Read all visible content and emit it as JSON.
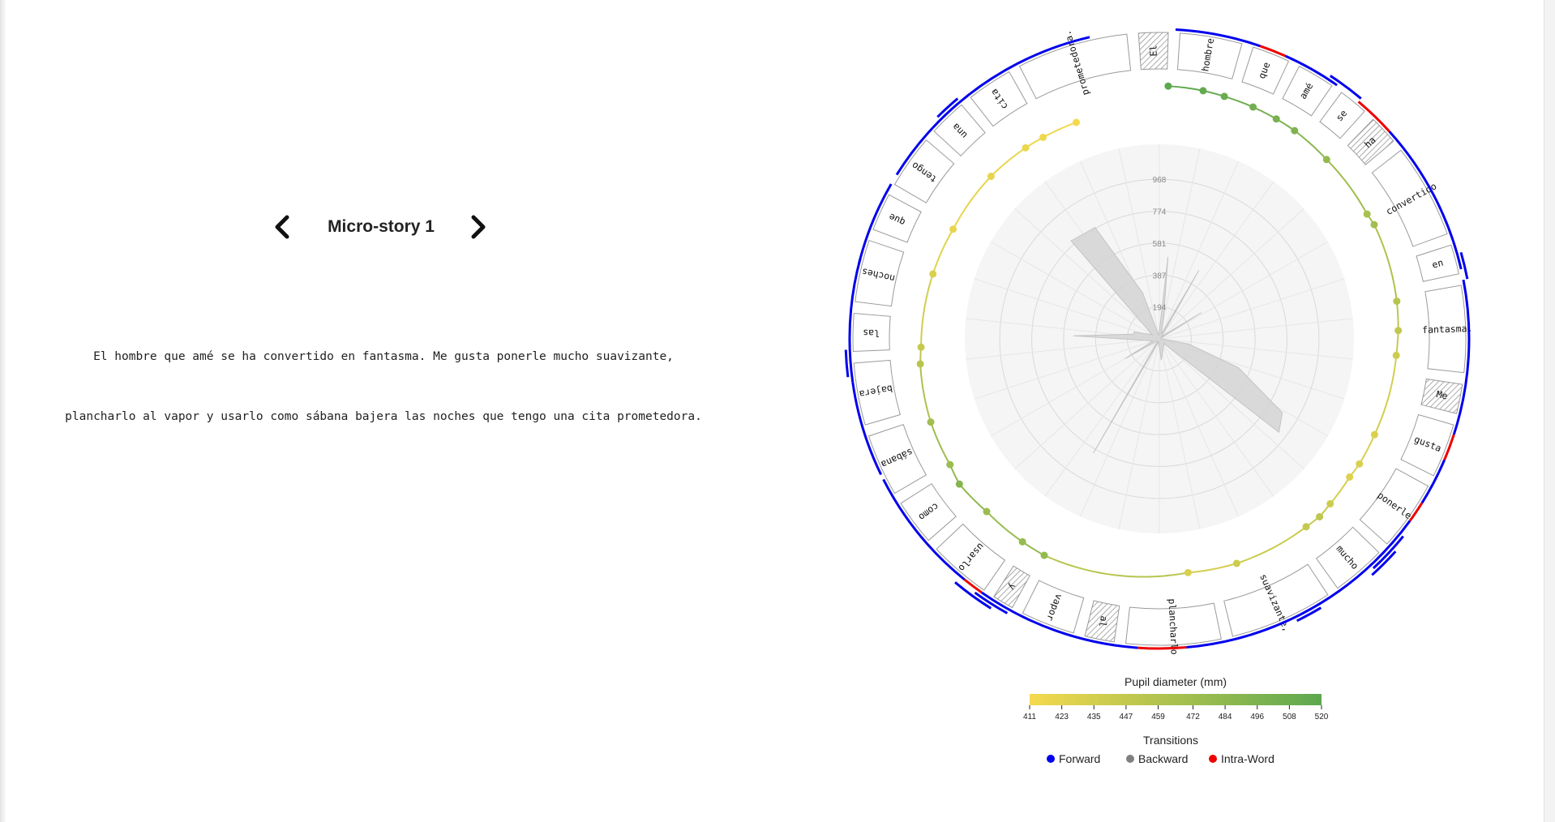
{
  "nav": {
    "prev_icon": "chevron-left-icon",
    "next_icon": "chevron-right-icon",
    "title": "Micro-story 1"
  },
  "story": {
    "lines": [
      "El hombre que amé se ha convertido en fantasma. Me gusta ponerle mucho suavizante,",
      "plancharlo al vapor y usarlo como sábana bajera las noches que tengo una cita prometedora."
    ]
  },
  "chart_data": {
    "type": "radial",
    "words": [
      {
        "text": "El",
        "hatched": true
      },
      {
        "text": "hombre",
        "hatched": false
      },
      {
        "text": "que",
        "hatched": false
      },
      {
        "text": "amé",
        "hatched": false
      },
      {
        "text": "se",
        "hatched": false
      },
      {
        "text": "ha",
        "hatched": true
      },
      {
        "text": "convertido",
        "hatched": false
      },
      {
        "text": "en",
        "hatched": false
      },
      {
        "text": "fantasma.",
        "hatched": false
      },
      {
        "text": "Me",
        "hatched": true
      },
      {
        "text": "gusta",
        "hatched": false
      },
      {
        "text": "ponerle",
        "hatched": false
      },
      {
        "text": "mucho",
        "hatched": false
      },
      {
        "text": "suavizante,",
        "hatched": false
      },
      {
        "text": "plancharlo",
        "hatched": false
      },
      {
        "text": "al",
        "hatched": true
      },
      {
        "text": "vapor",
        "hatched": false
      },
      {
        "text": "y",
        "hatched": true
      },
      {
        "text": "usarlo",
        "hatched": false
      },
      {
        "text": "como",
        "hatched": false
      },
      {
        "text": "sábana",
        "hatched": false
      },
      {
        "text": "bajera",
        "hatched": false
      },
      {
        "text": "las",
        "hatched": false
      },
      {
        "text": "noches",
        "hatched": false
      },
      {
        "text": "que",
        "hatched": false
      },
      {
        "text": "tengo",
        "hatched": false
      },
      {
        "text": "una",
        "hatched": false
      },
      {
        "text": "cita",
        "hatched": false
      },
      {
        "text": "prometedora.",
        "hatched": false
      }
    ],
    "radial_ticks": [
      194,
      387,
      581,
      774,
      968
    ],
    "radial_max": 1180,
    "fixation_duration_profile": [
      {
        "angle": 6,
        "value": 500
      },
      {
        "angle": 12,
        "value": 120
      },
      {
        "angle": 22,
        "value": 30
      },
      {
        "angle": 30,
        "value": 480
      },
      {
        "angle": 34,
        "value": 60
      },
      {
        "angle": 44,
        "value": 20
      },
      {
        "angle": 58,
        "value": 300
      },
      {
        "angle": 60,
        "value": 20
      },
      {
        "angle": 88,
        "value": 10
      },
      {
        "angle": 100,
        "value": 180
      },
      {
        "angle": 110,
        "value": 510
      },
      {
        "angle": 121,
        "value": 870
      },
      {
        "angle": 128,
        "value": 920
      },
      {
        "angle": 135,
        "value": 40
      },
      {
        "angle": 175,
        "value": 130
      },
      {
        "angle": 178,
        "value": 60
      },
      {
        "angle": 195,
        "value": 20
      },
      {
        "angle": 210,
        "value": 800
      },
      {
        "angle": 214,
        "value": 20
      },
      {
        "angle": 228,
        "value": 20
      },
      {
        "angle": 240,
        "value": 240
      },
      {
        "angle": 252,
        "value": 40
      },
      {
        "angle": 272,
        "value": 520
      },
      {
        "angle": 280,
        "value": 160
      },
      {
        "angle": 285,
        "value": 160
      },
      {
        "angle": 300,
        "value": 50
      },
      {
        "angle": 318,
        "value": 800
      },
      {
        "angle": 330,
        "value": 780
      },
      {
        "angle": 340,
        "value": 300
      },
      {
        "angle": 352,
        "value": 20
      }
    ],
    "fixations": [
      {
        "angle": 2,
        "pupil": 520
      },
      {
        "angle": 10,
        "pupil": 515
      },
      {
        "angle": 15,
        "pupil": 510
      },
      {
        "angle": 22,
        "pupil": 505
      },
      {
        "angle": 28,
        "pupil": 500
      },
      {
        "angle": 33,
        "pupil": 496
      },
      {
        "angle": 43,
        "pupil": 480
      },
      {
        "angle": 59,
        "pupil": 465
      },
      {
        "angle": 62,
        "pupil": 470
      },
      {
        "angle": 81,
        "pupil": 455
      },
      {
        "angle": 88,
        "pupil": 448
      },
      {
        "angle": 94,
        "pupil": 440
      },
      {
        "angle": 114,
        "pupil": 430
      },
      {
        "angle": 122,
        "pupil": 432
      },
      {
        "angle": 126,
        "pupil": 428
      },
      {
        "angle": 134,
        "pupil": 440
      },
      {
        "angle": 138,
        "pupil": 450
      },
      {
        "angle": 142,
        "pupil": 445
      },
      {
        "angle": 161,
        "pupil": 440
      },
      {
        "angle": 173,
        "pupil": 430
      },
      {
        "angle": 208,
        "pupil": 480
      },
      {
        "angle": 214,
        "pupil": 478
      },
      {
        "angle": 225,
        "pupil": 475
      },
      {
        "angle": 234,
        "pupil": 490
      },
      {
        "angle": 239,
        "pupil": 475
      },
      {
        "angle": 250,
        "pupil": 470
      },
      {
        "angle": 264,
        "pupil": 455
      },
      {
        "angle": 268,
        "pupil": 445
      },
      {
        "angle": 286,
        "pupil": 430
      },
      {
        "angle": 298,
        "pupil": 420
      },
      {
        "angle": 314,
        "pupil": 422
      },
      {
        "angle": 325,
        "pupil": 418
      },
      {
        "angle": 330,
        "pupil": 415
      },
      {
        "angle": 339,
        "pupil": 411
      }
    ],
    "pupil_range": [
      411,
      520
    ],
    "transitions": [
      {
        "type": "forward",
        "start": 3,
        "end": 19,
        "track": 0
      },
      {
        "type": "intra-word",
        "start": 19,
        "end": 24,
        "track": 0
      },
      {
        "type": "forward",
        "start": 24,
        "end": 35,
        "track": 0
      },
      {
        "type": "forward",
        "start": 33,
        "end": 40,
        "track": 1
      },
      {
        "type": "intra-word",
        "start": 40,
        "end": 48,
        "track": 0
      },
      {
        "type": "forward",
        "start": 48,
        "end": 77,
        "track": 0
      },
      {
        "type": "forward",
        "start": 74,
        "end": 79,
        "track": 1
      },
      {
        "type": "forward",
        "start": 79,
        "end": 108,
        "track": 0
      },
      {
        "type": "intra-word",
        "start": 108,
        "end": 113,
        "track": 0
      },
      {
        "type": "forward",
        "start": 113,
        "end": 122,
        "track": 0
      },
      {
        "type": "intra-word",
        "start": 122,
        "end": 126,
        "track": 0
      },
      {
        "type": "forward",
        "start": 126,
        "end": 136,
        "track": 0
      },
      {
        "type": "forward",
        "start": 129,
        "end": 137,
        "track": 1
      },
      {
        "type": "forward",
        "start": 132,
        "end": 138,
        "track": 2
      },
      {
        "type": "forward",
        "start": 136,
        "end": 153,
        "track": 0
      },
      {
        "type": "forward",
        "start": 149,
        "end": 154,
        "track": 1
      },
      {
        "type": "forward",
        "start": 153,
        "end": 175,
        "track": 0
      },
      {
        "type": "intra-word",
        "start": 175,
        "end": 184,
        "track": 0
      },
      {
        "type": "forward",
        "start": 184,
        "end": 215,
        "track": 0
      },
      {
        "type": "forward",
        "start": 209,
        "end": 216,
        "track": 1
      },
      {
        "type": "intra-word",
        "start": 215,
        "end": 219,
        "track": 0
      },
      {
        "type": "forward",
        "start": 212,
        "end": 220,
        "track": 2
      },
      {
        "type": "forward",
        "start": 219,
        "end": 243,
        "track": 0
      },
      {
        "type": "forward",
        "start": 244,
        "end": 262,
        "track": 0
      },
      {
        "type": "forward",
        "start": 263,
        "end": 268,
        "track": 1
      },
      {
        "type": "forward",
        "start": 262,
        "end": 285,
        "track": 0
      },
      {
        "type": "forward",
        "start": 284,
        "end": 300,
        "track": 0
      },
      {
        "type": "forward",
        "start": 302,
        "end": 313,
        "track": 0
      },
      {
        "type": "forward",
        "start": 315,
        "end": 320,
        "track": 1
      },
      {
        "type": "forward",
        "start": 313,
        "end": 347,
        "track": 0
      }
    ],
    "legend": {
      "colorbar_title": "Pupil diameter (mm)",
      "colorbar_ticks": [
        411,
        423,
        435,
        447,
        459,
        472,
        484,
        496,
        508,
        520
      ],
      "colorbar_colors": [
        "#f5d94e",
        "#5ca84f"
      ],
      "transitions_title": "Transitions",
      "items": [
        {
          "label": "Forward",
          "color": "#0000ee"
        },
        {
          "label": "Backward",
          "color": "#808080"
        },
        {
          "label": "Intra-Word",
          "color": "#ee0000"
        }
      ]
    },
    "colors": {
      "forward": "#0000ee",
      "backward": "#808080",
      "intra_word": "#ee0000"
    }
  }
}
